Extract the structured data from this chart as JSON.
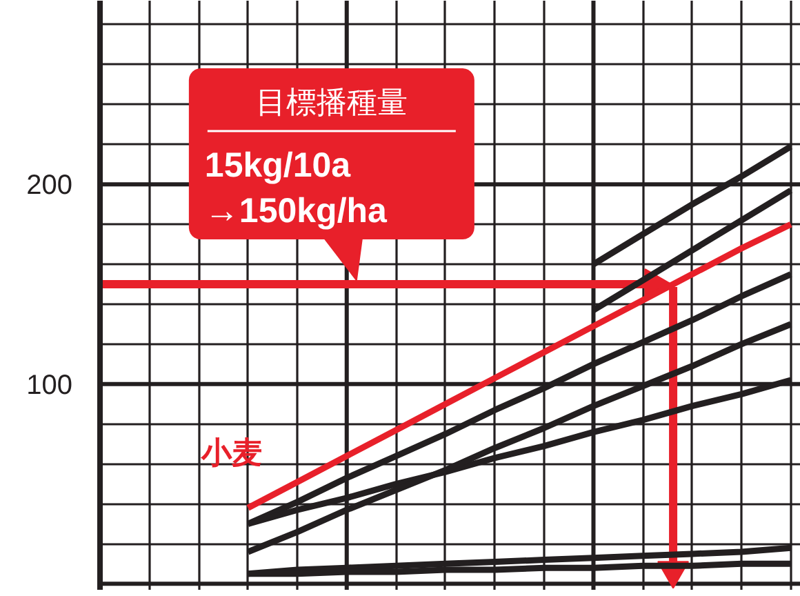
{
  "chart_data": {
    "type": "line",
    "ylim": [
      -3,
      292
    ],
    "categories": [
      null,
      null,
      null,
      null,
      null,
      null,
      null,
      null,
      null,
      null,
      null,
      null,
      null,
      null,
      null
    ],
    "yticks": [
      {
        "value": 0,
        "label": null
      },
      {
        "value": 20,
        "label": null
      },
      {
        "value": 40,
        "label": null
      },
      {
        "value": 60,
        "label": null
      },
      {
        "value": 80,
        "label": null
      },
      100,
      {
        "value": 120,
        "label": null
      },
      {
        "value": 140,
        "label": null
      },
      {
        "value": 160,
        "label": null
      },
      {
        "value": 180,
        "label": null
      },
      200,
      {
        "value": 220,
        "label": null
      },
      {
        "value": 240,
        "label": null
      },
      {
        "value": 260,
        "label": null
      },
      {
        "value": 280,
        "label": null
      }
    ],
    "tick_labels": "y",
    "grid": true,
    "legend": false,
    "marker": "none",
    "line_style": "solid",
    "series": [
      {
        "name": "小麦",
        "color": "#e8202a",
        "values": [
          null,
          null,
          null,
          38,
          51,
          64,
          77,
          90,
          103,
          116,
          129,
          142,
          155,
          168,
          180
        ]
      },
      {
        "color": "#231f20",
        "values": [
          null,
          null,
          null,
          null,
          null,
          null,
          null,
          null,
          null,
          null,
          160,
          175,
          190,
          204,
          219
        ]
      },
      {
        "color": "#231f20",
        "values": [
          null,
          null,
          null,
          null,
          null,
          null,
          null,
          null,
          null,
          null,
          137,
          152,
          167,
          182,
          197
        ]
      },
      {
        "color": "#231f20",
        "values": [
          null,
          null,
          null,
          30,
          41,
          53,
          64,
          75,
          87,
          98,
          110,
          121,
          132,
          144,
          155
        ]
      },
      {
        "color": "#231f20",
        "values": [
          null,
          null,
          null,
          30,
          37,
          43,
          50,
          56,
          63,
          69,
          76,
          82,
          89,
          95,
          102
        ]
      },
      {
        "color": "#231f20",
        "values": [
          null,
          null,
          null,
          16,
          26,
          37,
          47,
          57,
          68,
          78,
          89,
          99,
          109,
          120,
          130
        ]
      },
      {
        "color": "#231f20",
        "values": [
          null,
          null,
          null,
          5,
          7,
          8,
          9,
          10,
          11,
          12,
          13,
          14,
          15,
          16,
          18
        ]
      },
      {
        "color": "#231f20",
        "values": [
          null,
          null,
          null,
          5,
          5,
          6,
          6,
          7,
          7,
          8,
          8,
          9,
          9,
          10,
          10
        ]
      }
    ],
    "ref_lines": [
      {
        "axis": "y",
        "value": 150,
        "color": "#e8202a"
      }
    ],
    "annotations": [
      {
        "text": "目標播種量\n15kg/10a\n→150kg/ha",
        "y": 150
      }
    ]
  }
}
